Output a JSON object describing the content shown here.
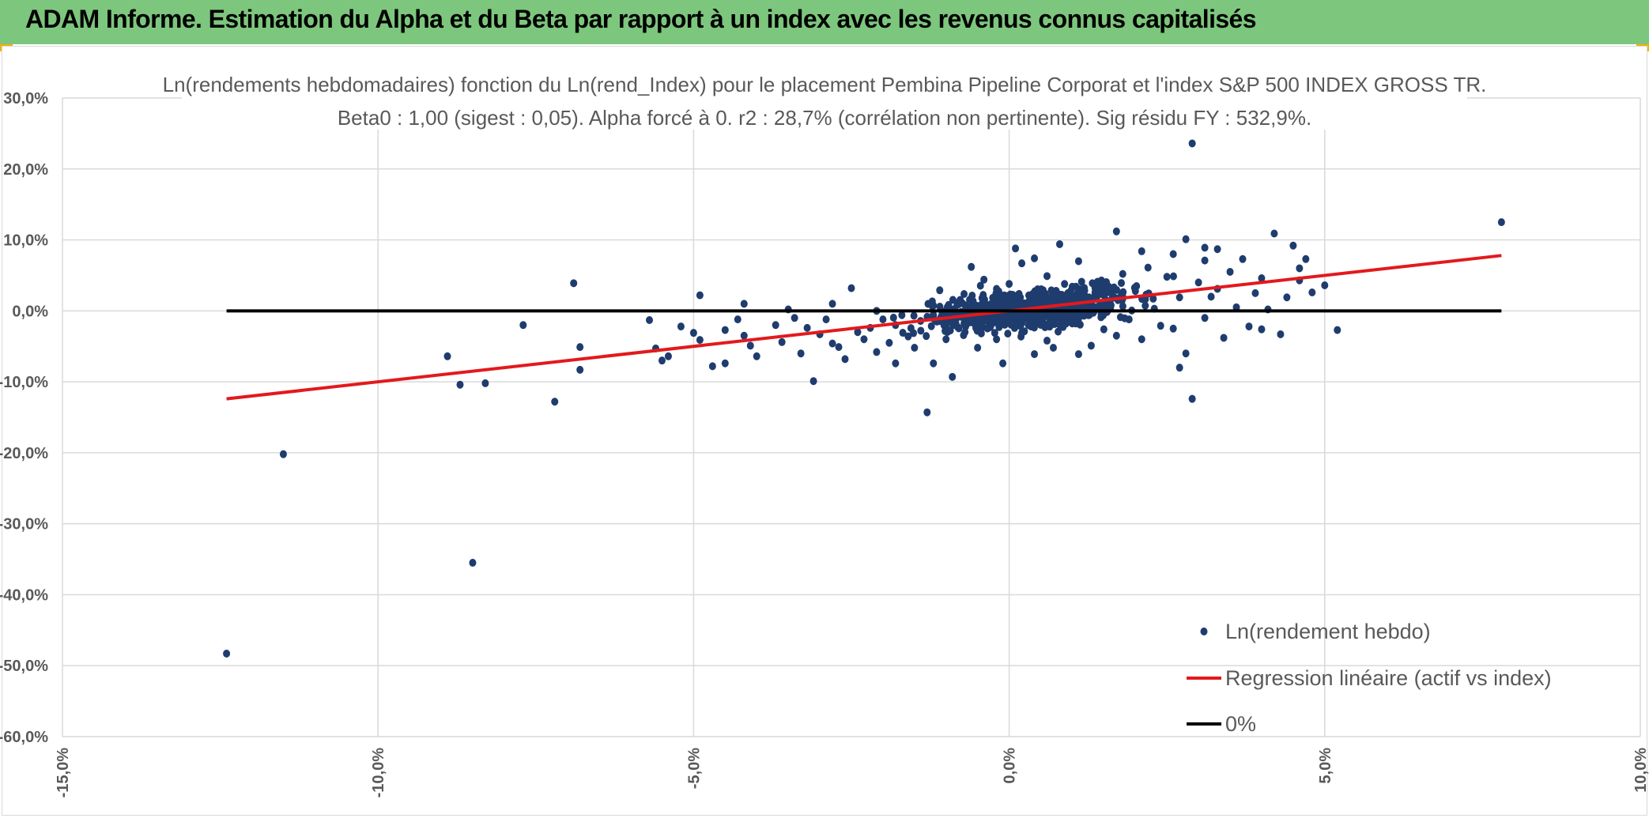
{
  "header": {
    "title": "ADAM Informe. Estimation du Alpha et du Beta par rapport à un index avec les revenus connus capitalisés",
    "bg_color": "#7dc67d"
  },
  "chart_data": {
    "type": "scatter",
    "title": "Ln(rendements hebdomadaires) fonction du Ln(rend_Index) pour le placement Pembina Pipeline Corporat et l'index S&P 500 INDEX GROSS TR.",
    "subtitle": "Beta0 : 1,00 (sigest : 0,05). Alpha forcé à 0. r2 : 28,7% (corrélation non pertinente). Sig résidu FY : 532,9%.",
    "xlim": [
      -0.15,
      0.1
    ],
    "ylim": [
      -0.6,
      0.3
    ],
    "x_ticks": [
      -0.15,
      -0.1,
      -0.05,
      0.0,
      0.05,
      0.1
    ],
    "x_tick_labels": [
      "-15,0%",
      "-10,0%",
      "-5,0%",
      "0,0%",
      "5,0%",
      "10,0%"
    ],
    "y_ticks": [
      0.3,
      0.2,
      0.1,
      0.0,
      -0.1,
      -0.2,
      -0.3,
      -0.4,
      -0.5,
      -0.6
    ],
    "y_tick_labels": [
      "30,0%",
      "20,0%",
      "10,0%",
      "0,0%",
      "-10,0%",
      "-20,0%",
      "-30,0%",
      "-40,0%",
      "-50,0%",
      "-60,0%"
    ],
    "grid": true,
    "legend_position": "bottom-right",
    "series": [
      {
        "name": "Ln(rendement hebdo)",
        "kind": "scatter",
        "color": "#1f3c6e",
        "points": [
          [
            -0.124,
            -0.483
          ],
          [
            -0.115,
            -0.202
          ],
          [
            -0.085,
            -0.355
          ],
          [
            -0.089,
            -0.064
          ],
          [
            -0.087,
            -0.104
          ],
          [
            -0.083,
            -0.102
          ],
          [
            -0.077,
            -0.02
          ],
          [
            -0.072,
            -0.128
          ],
          [
            -0.069,
            0.039
          ],
          [
            -0.068,
            -0.051
          ],
          [
            -0.068,
            -0.083
          ],
          [
            -0.057,
            -0.013
          ],
          [
            -0.056,
            -0.053
          ],
          [
            -0.055,
            -0.07
          ],
          [
            -0.054,
            -0.064
          ],
          [
            -0.052,
            -0.022
          ],
          [
            -0.05,
            -0.031
          ],
          [
            -0.049,
            -0.041
          ],
          [
            -0.049,
            0.022
          ],
          [
            -0.047,
            -0.078
          ],
          [
            -0.045,
            -0.074
          ],
          [
            -0.045,
            -0.027
          ],
          [
            -0.043,
            -0.012
          ],
          [
            -0.042,
            -0.035
          ],
          [
            -0.042,
            0.01
          ],
          [
            -0.041,
            -0.049
          ],
          [
            -0.04,
            -0.064
          ],
          [
            -0.037,
            -0.02
          ],
          [
            -0.036,
            -0.044
          ],
          [
            -0.035,
            0.002
          ],
          [
            -0.034,
            -0.01
          ],
          [
            -0.033,
            -0.06
          ],
          [
            -0.032,
            -0.024
          ],
          [
            -0.031,
            -0.099
          ],
          [
            -0.03,
            -0.033
          ],
          [
            -0.029,
            -0.012
          ],
          [
            -0.028,
            -0.046
          ],
          [
            -0.028,
            0.01
          ],
          [
            -0.027,
            -0.051
          ],
          [
            -0.026,
            -0.068
          ],
          [
            -0.025,
            0.032
          ],
          [
            -0.024,
            -0.03
          ],
          [
            -0.023,
            -0.04
          ],
          [
            -0.022,
            -0.024
          ],
          [
            -0.021,
            -0.058
          ],
          [
            -0.021,
            0.0
          ],
          [
            -0.02,
            -0.012
          ],
          [
            -0.019,
            -0.045
          ],
          [
            -0.018,
            -0.074
          ],
          [
            -0.018,
            -0.02
          ],
          [
            -0.017,
            -0.006
          ],
          [
            -0.016,
            -0.036
          ],
          [
            -0.015,
            -0.052
          ],
          [
            -0.014,
            -0.028
          ],
          [
            -0.013,
            -0.143
          ],
          [
            -0.012,
            -0.074
          ],
          [
            -0.012,
            -0.006
          ],
          [
            -0.011,
            0.029
          ],
          [
            -0.01,
            -0.04
          ],
          [
            -0.009,
            -0.093
          ],
          [
            -0.009,
            -0.018
          ],
          [
            -0.008,
            0.012
          ],
          [
            -0.007,
            -0.03
          ],
          [
            -0.006,
            0.062
          ],
          [
            -0.005,
            -0.052
          ],
          [
            -0.004,
            0.044
          ],
          [
            -0.003,
            -0.023
          ],
          [
            -0.002,
            0.031
          ],
          [
            -0.002,
            -0.04
          ],
          [
            -0.001,
            0.015
          ],
          [
            -0.001,
            -0.074
          ],
          [
            0.0,
            0.038
          ],
          [
            0.001,
            0.088
          ],
          [
            0.001,
            -0.018
          ],
          [
            0.002,
            0.067
          ],
          [
            0.002,
            -0.031
          ],
          [
            0.003,
            0.008
          ],
          [
            0.004,
            0.074
          ],
          [
            0.004,
            -0.061
          ],
          [
            0.005,
            0.027
          ],
          [
            0.006,
            -0.042
          ],
          [
            0.006,
            0.049
          ],
          [
            0.007,
            -0.052
          ],
          [
            0.008,
            0.021
          ],
          [
            0.008,
            0.094
          ],
          [
            0.009,
            -0.018
          ],
          [
            0.01,
            0.034
          ],
          [
            0.011,
            -0.061
          ],
          [
            0.011,
            0.07
          ],
          [
            0.012,
            0.006
          ],
          [
            0.013,
            -0.049
          ],
          [
            0.014,
            0.041
          ],
          [
            0.015,
            -0.026
          ],
          [
            0.016,
            0.014
          ],
          [
            0.017,
            0.112
          ],
          [
            0.017,
            -0.035
          ],
          [
            0.018,
            0.052
          ],
          [
            0.019,
            -0.012
          ],
          [
            0.02,
            0.028
          ],
          [
            0.021,
            -0.04
          ],
          [
            0.022,
            0.061
          ],
          [
            0.023,
            0.003
          ],
          [
            0.024,
            -0.021
          ],
          [
            0.025,
            0.048
          ],
          [
            0.026,
            0.08
          ],
          [
            0.026,
            -0.025
          ],
          [
            0.027,
            0.019
          ],
          [
            0.028,
            0.101
          ],
          [
            0.028,
            -0.06
          ],
          [
            0.029,
            0.236
          ],
          [
            0.03,
            0.04
          ],
          [
            0.031,
            -0.01
          ],
          [
            0.031,
            0.089
          ],
          [
            0.032,
            0.02
          ],
          [
            0.033,
            0.031
          ],
          [
            0.034,
            -0.038
          ],
          [
            0.035,
            0.055
          ],
          [
            0.036,
            0.005
          ],
          [
            0.037,
            0.073
          ],
          [
            0.038,
            -0.022
          ],
          [
            0.039,
            0.025
          ],
          [
            0.04,
            0.046
          ],
          [
            0.041,
            0.002
          ],
          [
            0.042,
            0.109
          ],
          [
            0.043,
            -0.033
          ],
          [
            0.044,
            0.019
          ],
          [
            0.045,
            0.092
          ],
          [
            0.046,
            0.06
          ],
          [
            0.047,
            0.073
          ],
          [
            0.048,
            0.026
          ],
          [
            0.05,
            0.036
          ],
          [
            0.052,
            -0.027
          ],
          [
            0.078,
            0.125
          ],
          [
            0.027,
            -0.08
          ],
          [
            0.029,
            -0.124
          ],
          [
            0.021,
            0.084
          ],
          [
            0.031,
            0.071
          ],
          [
            0.04,
            -0.026
          ],
          [
            0.046,
            0.043
          ],
          [
            0.033,
            0.087
          ]
        ]
      },
      {
        "name": "Regression linéaire (actif vs index)",
        "kind": "line",
        "color": "#e3191c",
        "points": [
          [
            -0.124,
            -0.124
          ],
          [
            0.078,
            0.078
          ]
        ]
      },
      {
        "name": "0%",
        "kind": "line",
        "color": "#000000",
        "points": [
          [
            -0.124,
            0.0
          ],
          [
            0.078,
            0.0
          ]
        ]
      }
    ]
  }
}
